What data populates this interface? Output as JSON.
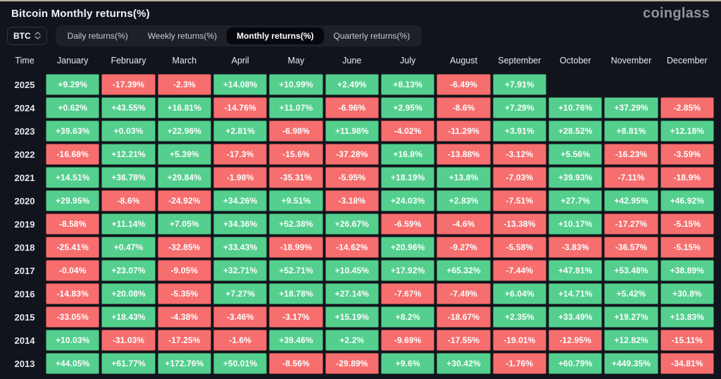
{
  "header": {
    "title": "Bitcoin Monthly returns(%)",
    "logo": "coinglass"
  },
  "controls": {
    "symbol_select": {
      "value": "BTC"
    },
    "tabs": [
      {
        "label": "Daily returns(%)",
        "active": false
      },
      {
        "label": "Weekly returns(%)",
        "active": false
      },
      {
        "label": "Monthly returns(%)",
        "active": true
      },
      {
        "label": "Quarterly returns(%)",
        "active": false
      }
    ]
  },
  "colors": {
    "positive": "#54cf8e",
    "negative": "#f76e6e",
    "background": "#12141d"
  },
  "table": {
    "type": "heatmap",
    "time_header": "Time",
    "months": [
      "January",
      "February",
      "March",
      "April",
      "May",
      "June",
      "July",
      "August",
      "September",
      "October",
      "November",
      "December"
    ],
    "rows": [
      {
        "year": "2025",
        "values": [
          "+9.29%",
          "-17.39%",
          "-2.3%",
          "+14.08%",
          "+10.99%",
          "+2.49%",
          "+8.13%",
          "-6.49%",
          "+7.91%",
          null,
          null,
          null
        ]
      },
      {
        "year": "2024",
        "values": [
          "+0.62%",
          "+43.55%",
          "+16.81%",
          "-14.76%",
          "+11.07%",
          "-6.96%",
          "+2.95%",
          "-8.6%",
          "+7.29%",
          "+10.76%",
          "+37.29%",
          "-2.85%"
        ]
      },
      {
        "year": "2023",
        "values": [
          "+39.63%",
          "+0.03%",
          "+22.96%",
          "+2.81%",
          "-6.98%",
          "+11.98%",
          "-4.02%",
          "-11.29%",
          "+3.91%",
          "+28.52%",
          "+8.81%",
          "+12.18%"
        ]
      },
      {
        "year": "2022",
        "values": [
          "-16.68%",
          "+12.21%",
          "+5.39%",
          "-17.3%",
          "-15.6%",
          "-37.28%",
          "+16.8%",
          "-13.88%",
          "-3.12%",
          "+5.56%",
          "-16.23%",
          "-3.59%"
        ]
      },
      {
        "year": "2021",
        "values": [
          "+14.51%",
          "+36.78%",
          "+29.84%",
          "-1.98%",
          "-35.31%",
          "-5.95%",
          "+18.19%",
          "+13.8%",
          "-7.03%",
          "+39.93%",
          "-7.11%",
          "-18.9%"
        ]
      },
      {
        "year": "2020",
        "values": [
          "+29.95%",
          "-8.6%",
          "-24.92%",
          "+34.26%",
          "+9.51%",
          "-3.18%",
          "+24.03%",
          "+2.83%",
          "-7.51%",
          "+27.7%",
          "+42.95%",
          "+46.92%"
        ]
      },
      {
        "year": "2019",
        "values": [
          "-8.58%",
          "+11.14%",
          "+7.05%",
          "+34.36%",
          "+52.38%",
          "+26.67%",
          "-6.59%",
          "-4.6%",
          "-13.38%",
          "+10.17%",
          "-17.27%",
          "-5.15%"
        ]
      },
      {
        "year": "2018",
        "values": [
          "-25.41%",
          "+0.47%",
          "-32.85%",
          "+33.43%",
          "-18.99%",
          "-14.62%",
          "+20.96%",
          "-9.27%",
          "-5.58%",
          "-3.83%",
          "-36.57%",
          "-5.15%"
        ]
      },
      {
        "year": "2017",
        "values": [
          "-0.04%",
          "+23.07%",
          "-9.05%",
          "+32.71%",
          "+52.71%",
          "+10.45%",
          "+17.92%",
          "+65.32%",
          "-7.44%",
          "+47.81%",
          "+53.48%",
          "+38.89%"
        ]
      },
      {
        "year": "2016",
        "values": [
          "-14.83%",
          "+20.08%",
          "-5.35%",
          "+7.27%",
          "+18.78%",
          "+27.14%",
          "-7.67%",
          "-7.49%",
          "+6.04%",
          "+14.71%",
          "+5.42%",
          "+30.8%"
        ]
      },
      {
        "year": "2015",
        "values": [
          "-33.05%",
          "+18.43%",
          "-4.38%",
          "-3.46%",
          "-3.17%",
          "+15.19%",
          "+8.2%",
          "-18.67%",
          "+2.35%",
          "+33.49%",
          "+19.27%",
          "+13.83%"
        ]
      },
      {
        "year": "2014",
        "values": [
          "+10.03%",
          "-31.03%",
          "-17.25%",
          "-1.6%",
          "+39.46%",
          "+2.2%",
          "-9.69%",
          "-17.55%",
          "-19.01%",
          "-12.95%",
          "+12.82%",
          "-15.11%"
        ]
      },
      {
        "year": "2013",
        "values": [
          "+44.05%",
          "+61.77%",
          "+172.76%",
          "+50.01%",
          "-8.56%",
          "-29.89%",
          "+9.6%",
          "+30.42%",
          "-1.76%",
          "+60.79%",
          "+449.35%",
          "-34.81%"
        ]
      }
    ]
  }
}
